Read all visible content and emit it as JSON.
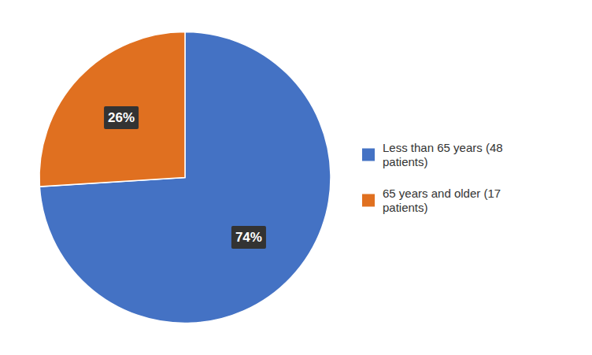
{
  "chart_data": {
    "type": "pie",
    "categories": [
      "Less than 65 years (48\npatients)",
      "65 years and older (17\npatients)"
    ],
    "values": [
      74,
      26
    ],
    "value_labels": [
      "74%",
      "26%"
    ],
    "colors": [
      "#4472C4",
      "#E07020"
    ],
    "data_labels": true,
    "legend": "right"
  }
}
